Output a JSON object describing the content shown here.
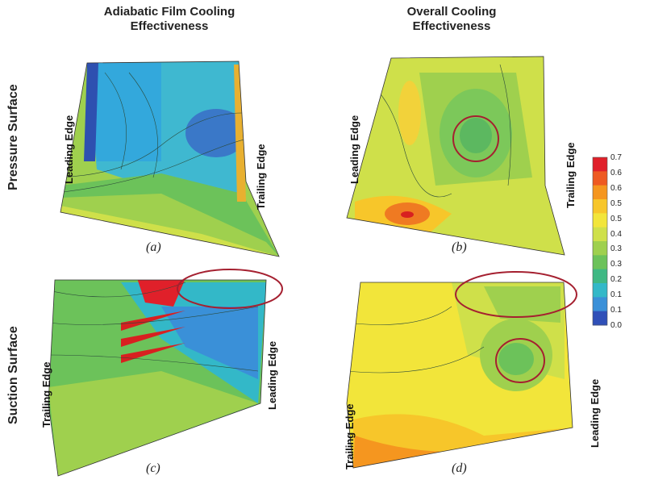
{
  "column_titles": [
    "Adiabatic Film Cooling\nEffectiveness",
    "Overall Cooling\nEffectiveness"
  ],
  "row_titles": [
    "Pressure Surface",
    "Suction Surface"
  ],
  "edges": {
    "leading": "Leading Edge",
    "trailing": "Trailing Edge"
  },
  "captions": [
    "(a)",
    "(b)",
    "(c)",
    "(d)"
  ],
  "colorbar": {
    "labels": [
      "0.7",
      "0.6",
      "0.6",
      "0.5",
      "0.5",
      "0.4",
      "0.3",
      "0.3",
      "0.2",
      "0.1",
      "0.1",
      "0.0"
    ],
    "colors": [
      "#e0202a",
      "#ee5a22",
      "#f5961f",
      "#f7c62a",
      "#f2e53a",
      "#cfe04a",
      "#9fd04e",
      "#6cc25a",
      "#3fb884",
      "#33b8c8",
      "#3a90d8",
      "#3050b8"
    ]
  }
}
